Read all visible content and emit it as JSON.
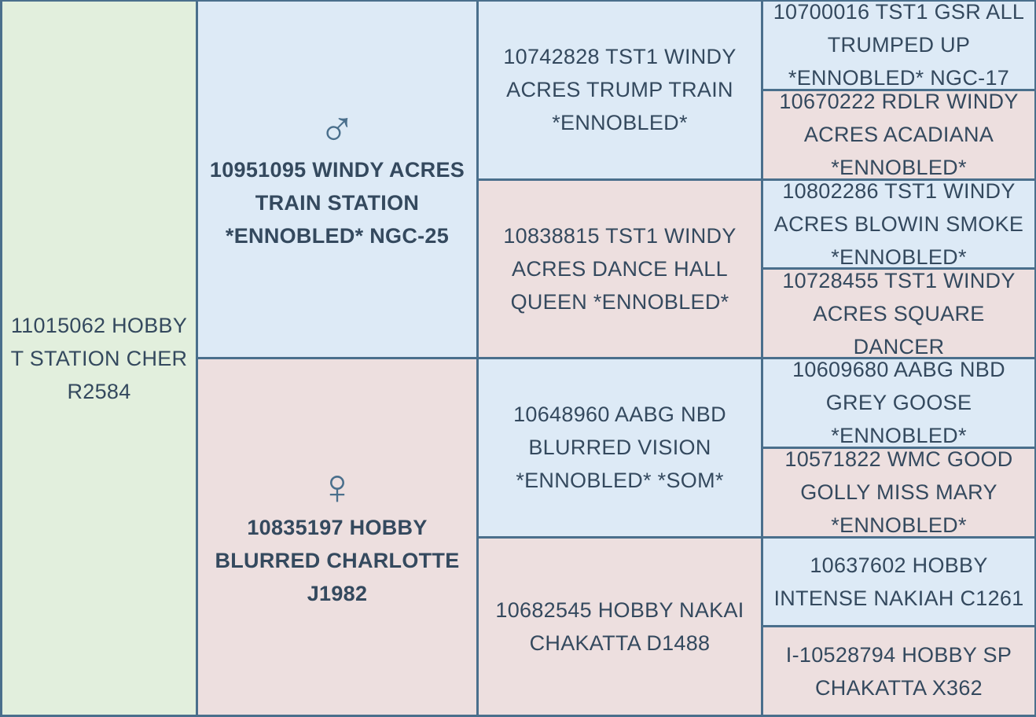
{
  "colors": {
    "border": "#4a6f8c",
    "subject_bg": "#e2efdd",
    "male_bg": "#ddeaf6",
    "female_bg": "#eddfdf",
    "text": "#34495e"
  },
  "subject": {
    "name": "11015062 HOBBY T STATION CHER R2584"
  },
  "sire": {
    "symbol": "♂",
    "icon": "male-symbol",
    "name": "10951095 WINDY ACRES TRAIN STATION *ENNOBLED* NGC-25"
  },
  "dam": {
    "symbol": "♀",
    "icon": "female-symbol",
    "name": "10835197 HOBBY BLURRED CHARLOTTE J1982"
  },
  "grandparents": [
    {
      "name": "10742828 TST1 WINDY ACRES TRUMP TRAIN *ENNOBLED*"
    },
    {
      "name": "10838815 TST1 WINDY ACRES DANCE HALL QUEEN *ENNOBLED*"
    },
    {
      "name": "10648960 AABG NBD BLURRED VISION *ENNOBLED* *SOM*"
    },
    {
      "name": "10682545 HOBBY NAKAI CHAKATTA D1488"
    }
  ],
  "great_grandparents": [
    {
      "name": "10700016 TST1 GSR ALL TRUMPED UP *ENNOBLED* NGC-17"
    },
    {
      "name": "10670222 RDLR WINDY ACRES ACADIANA *ENNOBLED*"
    },
    {
      "name": "10802286 TST1 WINDY ACRES BLOWIN SMOKE *ENNOBLED*"
    },
    {
      "name": "10728455 TST1 WINDY ACRES SQUARE DANCER"
    },
    {
      "name": "10609680 AABG NBD GREY GOOSE *ENNOBLED*"
    },
    {
      "name": "10571822 WMC GOOD GOLLY MISS MARY *ENNOBLED*"
    },
    {
      "name": "10637602 HOBBY INTENSE NAKIAH C1261"
    },
    {
      "name": "I-10528794 HOBBY SP CHAKATTA X362"
    }
  ]
}
